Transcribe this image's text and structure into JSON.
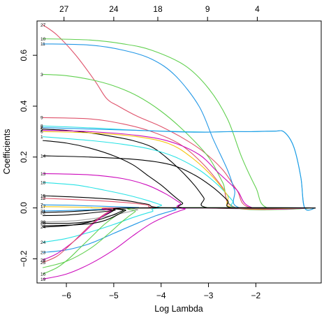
{
  "chart_data": {
    "type": "line",
    "title": "",
    "xlabel": "Log Lambda",
    "ylabel": "Coefficients",
    "xlim": [
      -6.62,
      -0.62
    ],
    "ylim": [
      -0.295,
      0.735
    ],
    "x_ticks": [
      -6,
      -5,
      -4,
      -3,
      -2
    ],
    "x_tick_labels": [
      "−6",
      "−5",
      "−4",
      "−3",
      "−2"
    ],
    "y_ticks": [
      -0.2,
      0.0,
      0.2,
      0.4,
      0.6
    ],
    "y_tick_labels": [
      "−0.2",
      "0.0",
      "0.2",
      "0.4",
      "0.6"
    ],
    "top_axis": {
      "x": [
        -6.05,
        -5.0,
        -4.07,
        -3.02,
        -1.97
      ],
      "labels": [
        "27",
        "24",
        "18",
        "9",
        "4"
      ]
    },
    "grid": false,
    "legend": "none",
    "series": [
      {
        "label": "27",
        "color": "#DF536B",
        "points": [
          [
            -6.5,
            0.72
          ],
          [
            -6.2,
            0.68
          ],
          [
            -5.8,
            0.6
          ],
          [
            -5.4,
            0.5
          ],
          [
            -5.15,
            0.43
          ],
          [
            -4.9,
            0.4
          ],
          [
            -4.5,
            0.36
          ],
          [
            -4.0,
            0.32
          ],
          [
            -3.5,
            0.27
          ],
          [
            -3.1,
            0.22
          ],
          [
            -2.7,
            0.15
          ],
          [
            -2.4,
            0.07
          ],
          [
            -2.1,
            0.0
          ]
        ]
      },
      {
        "label": "10",
        "color": "#61D04F",
        "points": [
          [
            -6.5,
            0.665
          ],
          [
            -5.5,
            0.66
          ],
          [
            -4.8,
            0.645
          ],
          [
            -4.2,
            0.62
          ],
          [
            -3.5,
            0.56
          ],
          [
            -3.0,
            0.47
          ],
          [
            -2.6,
            0.35
          ],
          [
            -2.3,
            0.2
          ],
          [
            -2.0,
            0.08
          ],
          [
            -1.75,
            0.0
          ]
        ]
      },
      {
        "label": "11",
        "color": "#2297E6",
        "points": [
          [
            -6.5,
            0.645
          ],
          [
            -5.5,
            0.64
          ],
          [
            -4.8,
            0.62
          ],
          [
            -4.2,
            0.585
          ],
          [
            -3.7,
            0.52
          ],
          [
            -3.2,
            0.4
          ],
          [
            -2.9,
            0.27
          ],
          [
            -2.6,
            0.15
          ],
          [
            -2.45,
            0.07
          ],
          [
            -2.32,
            0.0
          ]
        ]
      },
      {
        "label": "3",
        "color": "#61D04F",
        "points": [
          [
            -6.5,
            0.525
          ],
          [
            -6.0,
            0.52
          ],
          [
            -5.5,
            0.505
          ],
          [
            -5.0,
            0.48
          ],
          [
            -4.5,
            0.44
          ],
          [
            -4.0,
            0.38
          ],
          [
            -3.5,
            0.3
          ],
          [
            -3.0,
            0.2
          ],
          [
            -2.7,
            0.1
          ],
          [
            -2.4,
            0.0
          ]
        ]
      },
      {
        "label": "9",
        "color": "#DF536B",
        "points": [
          [
            -6.5,
            0.355
          ],
          [
            -5.5,
            0.35
          ],
          [
            -4.8,
            0.33
          ],
          [
            -4.2,
            0.3
          ],
          [
            -3.6,
            0.25
          ],
          [
            -3.1,
            0.17
          ],
          [
            -2.7,
            0.08
          ],
          [
            -2.4,
            0.0
          ]
        ]
      },
      {
        "label": "8",
        "color": "#28E2E5",
        "points": [
          [
            -6.5,
            0.322
          ],
          [
            -5.5,
            0.315
          ],
          [
            -4.5,
            0.305
          ],
          [
            -3.5,
            0.3
          ],
          [
            -3.0,
            0.298
          ],
          [
            -2.5,
            0.3
          ],
          [
            -2.0,
            0.3
          ],
          [
            -1.6,
            0.302
          ],
          [
            -1.4,
            0.298
          ],
          [
            -1.2,
            0.24
          ],
          [
            -1.05,
            0.12
          ],
          [
            -0.97,
            0.0
          ]
        ]
      },
      {
        "label": "2",
        "color": "#2297E6",
        "points": [
          [
            -6.5,
            0.316
          ],
          [
            -5.5,
            0.31
          ],
          [
            -4.5,
            0.305
          ],
          [
            -3.8,
            0.3
          ],
          [
            -3.4,
            0.298
          ],
          [
            -3.0,
            0.298
          ],
          [
            -2.6,
            0.3
          ],
          [
            -2.1,
            0.3
          ],
          [
            -1.6,
            0.302
          ],
          [
            -1.4,
            0.298
          ],
          [
            -1.2,
            0.24
          ],
          [
            -1.05,
            0.12
          ],
          [
            -0.97,
            0.0
          ]
        ]
      },
      {
        "label": "5",
        "color": "#000000",
        "points": [
          [
            -6.5,
            0.31
          ],
          [
            -6.0,
            0.305
          ],
          [
            -5.5,
            0.295
          ],
          [
            -5.0,
            0.28
          ],
          [
            -4.6,
            0.265
          ],
          [
            -4.2,
            0.24
          ],
          [
            -3.9,
            0.2
          ],
          [
            -3.6,
            0.15
          ],
          [
            -3.3,
            0.09
          ],
          [
            -3.1,
            0.04
          ],
          [
            -2.95,
            0.0
          ]
        ]
      },
      {
        "label": "7",
        "color": "#CD0BBC",
        "points": [
          [
            -6.5,
            0.305
          ],
          [
            -5.5,
            0.3
          ],
          [
            -4.5,
            0.285
          ],
          [
            -3.8,
            0.26
          ],
          [
            -3.2,
            0.21
          ],
          [
            -2.8,
            0.14
          ],
          [
            -2.4,
            0.07
          ],
          [
            -2.05,
            0.0
          ]
        ]
      },
      {
        "label": "1",
        "color": "#28E2E5",
        "points": [
          [
            -6.5,
            0.28
          ],
          [
            -5.5,
            0.265
          ],
          [
            -4.8,
            0.25
          ],
          [
            -4.2,
            0.23
          ],
          [
            -3.7,
            0.2
          ],
          [
            -3.2,
            0.15
          ],
          [
            -2.8,
            0.09
          ],
          [
            -2.5,
            0.03
          ],
          [
            -2.38,
            0.0
          ]
        ]
      },
      {
        "label": "6",
        "color": "#F5C710",
        "points": [
          [
            -6.5,
            0.3
          ],
          [
            -5.5,
            0.295
          ],
          [
            -4.5,
            0.28
          ],
          [
            -3.8,
            0.25
          ],
          [
            -3.3,
            0.19
          ],
          [
            -2.9,
            0.12
          ],
          [
            -2.6,
            0.05
          ],
          [
            -2.45,
            0.0
          ]
        ]
      },
      {
        "label": "",
        "color": "#000000",
        "points": [
          [
            -6.5,
            0.265
          ],
          [
            -6.0,
            0.255
          ],
          [
            -5.5,
            0.235
          ],
          [
            -5.0,
            0.205
          ],
          [
            -4.6,
            0.17
          ],
          [
            -4.3,
            0.13
          ],
          [
            -4.0,
            0.09
          ],
          [
            -3.75,
            0.05
          ],
          [
            -3.55,
            0.02
          ],
          [
            -3.4,
            0.0
          ]
        ]
      },
      {
        "label": "14",
        "color": "#000000",
        "points": [
          [
            -6.5,
            0.205
          ],
          [
            -5.5,
            0.2
          ],
          [
            -4.5,
            0.19
          ],
          [
            -3.8,
            0.17
          ],
          [
            -3.3,
            0.13
          ],
          [
            -2.9,
            0.08
          ],
          [
            -2.6,
            0.03
          ],
          [
            -2.45,
            0.0
          ]
        ]
      },
      {
        "label": "13",
        "color": "#CD0BBC",
        "points": [
          [
            -6.5,
            0.135
          ],
          [
            -5.5,
            0.13
          ],
          [
            -4.8,
            0.115
          ],
          [
            -4.3,
            0.09
          ],
          [
            -3.9,
            0.055
          ],
          [
            -3.6,
            0.02
          ],
          [
            -3.42,
            0.0
          ]
        ]
      },
      {
        "label": "18",
        "color": "#28E2E5",
        "points": [
          [
            -6.5,
            0.1
          ],
          [
            -5.8,
            0.09
          ],
          [
            -5.2,
            0.07
          ],
          [
            -4.7,
            0.05
          ],
          [
            -4.3,
            0.03
          ],
          [
            -4.0,
            0.012
          ],
          [
            -3.8,
            0.0
          ]
        ]
      },
      {
        "label": "15",
        "color": "#000000",
        "points": [
          [
            -6.5,
            0.048
          ],
          [
            -5.5,
            0.04
          ],
          [
            -4.8,
            0.03
          ],
          [
            -4.3,
            0.015
          ],
          [
            -3.8,
            0.0
          ]
        ]
      },
      {
        "label": "12",
        "color": "#DF536B",
        "points": [
          [
            -6.5,
            0.038
          ],
          [
            -5.5,
            0.03
          ],
          [
            -4.8,
            0.022
          ],
          [
            -4.3,
            0.012
          ],
          [
            -3.9,
            0.0
          ]
        ]
      },
      {
        "label": "7",
        "color": "#2297E6",
        "points": [
          [
            -6.5,
            0.012
          ],
          [
            -6.0,
            0.011
          ],
          [
            -5.5,
            0.008
          ],
          [
            -5.0,
            0.005
          ],
          [
            -4.5,
            0.002
          ],
          [
            -4.2,
            0.0
          ]
        ]
      },
      {
        "label": "17",
        "color": "#F5C710",
        "points": [
          [
            -6.5,
            0.005
          ],
          [
            -6.0,
            0.004
          ],
          [
            -5.5,
            0.002
          ],
          [
            -5.0,
            0.0
          ]
        ]
      },
      {
        "label": "22",
        "color": "#000000",
        "points": [
          [
            -6.5,
            -0.018
          ],
          [
            -6.0,
            -0.015
          ],
          [
            -5.5,
            -0.01
          ],
          [
            -5.0,
            -0.005
          ],
          [
            -4.7,
            0.0
          ]
        ]
      },
      {
        "label": "21",
        "color": "#2297E6",
        "points": [
          [
            -6.5,
            -0.012
          ],
          [
            -6.0,
            -0.01
          ],
          [
            -5.5,
            -0.007
          ],
          [
            -5.0,
            -0.004
          ],
          [
            -4.6,
            0.0
          ]
        ]
      },
      {
        "label": "20",
        "color": "#9E9E9E",
        "points": [
          [
            -6.5,
            -0.055
          ],
          [
            -5.8,
            -0.05
          ],
          [
            -5.2,
            -0.035
          ],
          [
            -4.8,
            -0.02
          ],
          [
            -4.5,
            -0.008
          ],
          [
            -4.3,
            0.0
          ]
        ]
      },
      {
        "label": "26",
        "color": "#000000",
        "points": [
          [
            -6.5,
            -0.06
          ],
          [
            -5.9,
            -0.06
          ],
          [
            -5.4,
            -0.05
          ],
          [
            -5.05,
            -0.03
          ],
          [
            -4.8,
            -0.01
          ],
          [
            -4.68,
            0.0
          ]
        ]
      },
      {
        "label": "24",
        "color": "#000000",
        "points": [
          [
            -6.5,
            -0.075
          ],
          [
            -6.0,
            -0.07
          ],
          [
            -5.5,
            -0.055
          ],
          [
            -5.2,
            -0.03
          ],
          [
            -5.0,
            -0.01
          ],
          [
            -4.9,
            0.0
          ]
        ]
      },
      {
        "label": "24",
        "color": "#28E2E5",
        "points": [
          [
            -6.5,
            -0.135
          ],
          [
            -6.0,
            -0.12
          ],
          [
            -5.5,
            -0.095
          ],
          [
            -5.0,
            -0.065
          ],
          [
            -4.6,
            -0.038
          ],
          [
            -4.2,
            -0.015
          ],
          [
            -3.85,
            0.0
          ]
        ]
      },
      {
        "label": "23",
        "color": "#2297E6",
        "points": [
          [
            -6.5,
            -0.175
          ],
          [
            -6.0,
            -0.165
          ],
          [
            -5.5,
            -0.14
          ],
          [
            -5.0,
            -0.1
          ],
          [
            -4.5,
            -0.06
          ],
          [
            -4.1,
            -0.03
          ],
          [
            -3.7,
            -0.008
          ],
          [
            -3.5,
            0.0
          ]
        ]
      },
      {
        "label": "28",
        "color": "#CD0BBC",
        "points": [
          [
            -6.5,
            -0.205
          ],
          [
            -6.2,
            -0.18
          ],
          [
            -5.9,
            -0.14
          ],
          [
            -5.65,
            -0.1
          ],
          [
            -5.45,
            -0.065
          ],
          [
            -5.25,
            -0.035
          ],
          [
            -5.05,
            -0.012
          ],
          [
            -4.9,
            0.0
          ]
        ]
      },
      {
        "label": "25",
        "color": "#DF536B",
        "points": [
          [
            -6.5,
            -0.215
          ],
          [
            -6.2,
            -0.19
          ],
          [
            -5.95,
            -0.15
          ],
          [
            -5.7,
            -0.105
          ],
          [
            -5.45,
            -0.06
          ],
          [
            -5.2,
            -0.025
          ],
          [
            -5.0,
            -0.005
          ],
          [
            -4.9,
            0.0
          ]
        ]
      },
      {
        "label": "16",
        "color": "#61D04F",
        "points": [
          [
            -6.5,
            -0.26
          ],
          [
            -6.2,
            -0.235
          ],
          [
            -5.95,
            -0.2
          ],
          [
            -5.7,
            -0.155
          ],
          [
            -5.45,
            -0.11
          ],
          [
            -5.2,
            -0.065
          ],
          [
            -4.95,
            -0.03
          ],
          [
            -4.75,
            -0.01
          ],
          [
            -4.6,
            0.0
          ]
        ]
      },
      {
        "label": "19",
        "color": "#CD0BBC",
        "points": [
          [
            -6.5,
            -0.28
          ],
          [
            -6.0,
            -0.26
          ],
          [
            -5.5,
            -0.22
          ],
          [
            -5.0,
            -0.165
          ],
          [
            -4.6,
            -0.11
          ],
          [
            -4.2,
            -0.06
          ],
          [
            -3.8,
            -0.025
          ],
          [
            -3.5,
            -0.005
          ],
          [
            -3.4,
            0.0
          ]
        ]
      },
      {
        "label": "",
        "color": "#61D04F",
        "points": [
          [
            -6.5,
            -0.235
          ],
          [
            -6.0,
            -0.21
          ],
          [
            -5.5,
            -0.16
          ],
          [
            -5.1,
            -0.1
          ],
          [
            -4.8,
            -0.05
          ],
          [
            -4.55,
            -0.015
          ],
          [
            -4.4,
            0.0
          ]
        ]
      },
      {
        "label": "",
        "color": "#000000",
        "points": [
          [
            -6.5,
            -0.07
          ],
          [
            -6.0,
            -0.068
          ],
          [
            -5.5,
            -0.062
          ],
          [
            -5.2,
            -0.05
          ],
          [
            -4.95,
            -0.03
          ],
          [
            -4.75,
            -0.01
          ],
          [
            -4.6,
            0.0
          ]
        ]
      },
      {
        "label": "",
        "color": "#000000",
        "points": [
          [
            -6.5,
            -0.03
          ],
          [
            -6.0,
            -0.028
          ],
          [
            -5.5,
            -0.02
          ],
          [
            -5.0,
            -0.01
          ],
          [
            -4.6,
            0.0
          ]
        ]
      }
    ]
  }
}
